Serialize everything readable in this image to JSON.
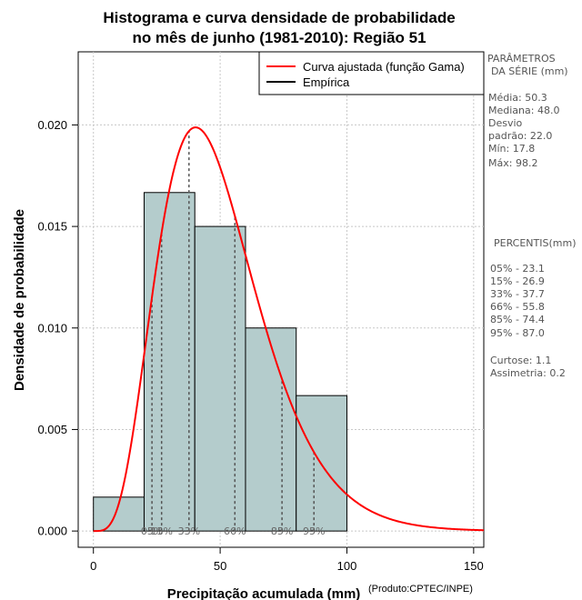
{
  "chart_data": {
    "type": "bar",
    "title": "Histograma e curva densidade de probabilidade",
    "subtitle": "no mês de junho (1981-2010): Região 51",
    "xlabel": "Precipitação acumulada (mm)",
    "ylabel": "Densidade de probabilidade",
    "credit": "(Produto:CPTEC/INPE)",
    "xlim": [
      -6,
      154
    ],
    "ylim": [
      -0.0008,
      0.0236
    ],
    "x_ticks": [
      0,
      50,
      100,
      150
    ],
    "y_ticks": [
      0.0,
      0.005,
      0.01,
      0.015,
      0.02
    ],
    "y_tick_labels": [
      "0.000",
      "0.005",
      "0.010",
      "0.015",
      "0.020"
    ],
    "grid": true,
    "bins": [
      {
        "start": 0,
        "end": 20,
        "density": 0.00167
      },
      {
        "start": 20,
        "end": 40,
        "density": 0.01667
      },
      {
        "start": 40,
        "end": 60,
        "density": 0.015
      },
      {
        "start": 60,
        "end": 80,
        "density": 0.01
      },
      {
        "start": 80,
        "end": 100,
        "density": 0.00667
      }
    ],
    "bar_color": "#b4cccc",
    "curve": {
      "name": "Curva ajustada (função Gama)",
      "color": "#ff0000",
      "shape": 5.2,
      "scale": 9.6,
      "x_range": [
        0,
        154
      ]
    },
    "legend": {
      "position": "top-right",
      "entries": [
        {
          "label": "Curva ajustada (função Gama)",
          "color": "#ff0000"
        },
        {
          "label": "Empírica",
          "color": "#000000"
        }
      ]
    },
    "percentiles": [
      {
        "value": 23.1,
        "label": "05%"
      },
      {
        "value": 26.9,
        "label": "15%"
      },
      {
        "value": 37.7,
        "label": "33%"
      },
      {
        "value": 55.8,
        "label": "66%"
      },
      {
        "value": 74.4,
        "label": "85%"
      },
      {
        "value": 87.0,
        "label": "95%"
      }
    ]
  },
  "side_panel": {
    "params_title_1": "PARÂMETROS",
    "params_title_2": "DA SÉRIE (mm)",
    "media": "Média:  50.3",
    "mediana": "Mediana:  48.0",
    "desvio_1": "Desvio",
    "desvio_2": "padrão:  22.0",
    "min": "Mín:  17.8",
    "max": "Máx:  98.2",
    "percentis_title": "PERCENTIS(mm)",
    "p05": "05% -  23.1",
    "p15": "15% -  26.9",
    "p33": "33% -  37.7",
    "p66": "66% -  55.8",
    "p85": "85% -  74.4",
    "p95": "95% -  87.0",
    "curtose": "Curtose:  1.1",
    "assimetria": "Assimetria:  0.2"
  }
}
